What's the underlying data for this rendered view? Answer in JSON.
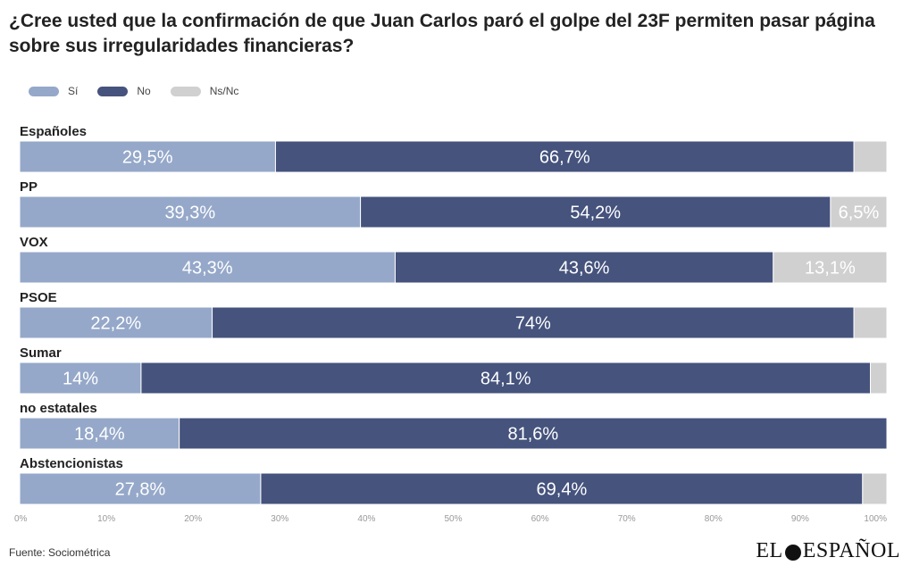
{
  "title": "¿Cree usted que la confirmación de que Juan Carlos paró el golpe del 23F permiten pasar página sobre sus irregularidades financieras?",
  "source": "Fuente: Sociométrica",
  "logo": {
    "left": "EL",
    "right": "ESPAÑOL"
  },
  "colors": {
    "si": "#95a8c9",
    "no": "#45537d",
    "nsnc": "#d0d0d0"
  },
  "chart_data": {
    "type": "bar",
    "orientation": "horizontal",
    "stacked": true,
    "categories": [
      "Españoles",
      "PP",
      "VOX",
      "PSOE",
      "Sumar",
      "no estatales",
      "Abstencionistas"
    ],
    "series": [
      {
        "name": "Sí",
        "values": [
          29.5,
          39.3,
          43.3,
          22.2,
          14,
          18.4,
          27.8
        ],
        "labels": [
          "29,5%",
          "39,3%",
          "43,3%",
          "22,2%",
          "14%",
          "18,4%",
          "27,8%"
        ]
      },
      {
        "name": "No",
        "values": [
          66.7,
          54.2,
          43.6,
          74,
          84.1,
          81.6,
          69.4
        ],
        "labels": [
          "66,7%",
          "54,2%",
          "43,6%",
          "74%",
          "84,1%",
          "81,6%",
          "69,4%"
        ]
      },
      {
        "name": "Ns/Nc",
        "values": [
          3.8,
          6.5,
          13.1,
          3.8,
          1.9,
          0,
          2.8
        ],
        "labels": [
          "",
          "6,5%",
          "13,1%",
          "",
          "",
          "",
          ""
        ]
      }
    ],
    "xlim": [
      0,
      100
    ],
    "xticks": [
      "0%",
      "10%",
      "20%",
      "30%",
      "40%",
      "50%",
      "60%",
      "70%",
      "80%",
      "90%",
      "100%"
    ],
    "legend_position": "top-left",
    "grid": false
  }
}
